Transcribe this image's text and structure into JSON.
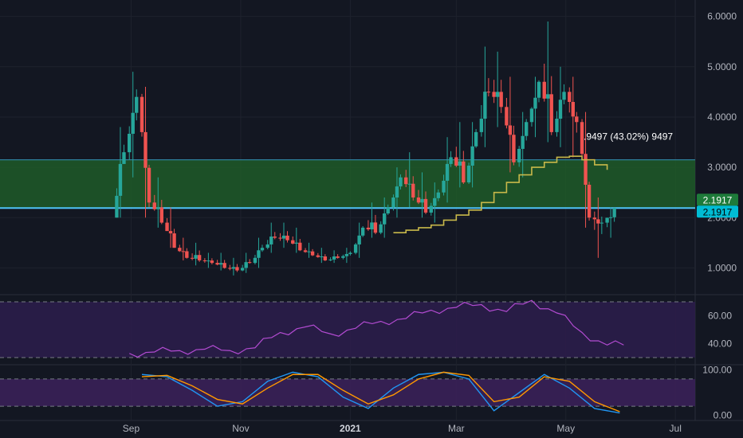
{
  "chart_data": [
    {
      "type": "candlestick",
      "x": [
        "2020-08-24",
        "2020-08-31",
        "2020-09-07",
        "2020-09-14",
        "2020-09-21",
        "2020-09-28",
        "2020-10-05",
        "2020-10-12",
        "2020-10-19",
        "2020-10-26",
        "2020-11-02",
        "2020-11-09",
        "2020-11-16",
        "2020-11-23",
        "2020-11-30",
        "2020-12-07",
        "2020-12-14",
        "2020-12-21",
        "2020-12-28",
        "2021-01-04",
        "2021-01-11",
        "2021-01-18",
        "2021-01-25",
        "2021-02-01",
        "2021-02-08",
        "2021-02-15",
        "2021-02-22",
        "2021-03-01",
        "2021-03-08",
        "2021-03-15",
        "2021-03-22",
        "2021-03-29",
        "2021-04-05",
        "2021-04-12",
        "2021-04-19",
        "2021-04-26",
        "2021-05-03",
        "2021-05-10",
        "2021-05-17",
        "2021-05-24"
      ],
      "open": [
        2.0,
        3.3,
        4.4,
        2.3,
        1.9,
        1.4,
        1.2,
        1.15,
        1.1,
        1.0,
        0.95,
        1.1,
        1.4,
        1.6,
        1.55,
        1.35,
        1.25,
        1.15,
        1.2,
        1.3,
        1.8,
        1.7,
        2.2,
        2.8,
        2.4,
        2.1,
        2.5,
        3.2,
        2.7,
        3.7,
        4.5,
        4.2,
        3.1,
        3.9,
        4.7,
        3.7,
        4.5,
        3.9,
        2.0,
        1.9
      ],
      "high": [
        3.8,
        4.9,
        4.6,
        2.8,
        2.2,
        1.6,
        1.5,
        1.3,
        1.3,
        1.2,
        1.3,
        1.6,
        1.9,
        1.9,
        1.8,
        1.5,
        1.4,
        1.35,
        1.4,
        1.9,
        2.3,
        2.4,
        3.0,
        3.3,
        2.9,
        2.7,
        3.6,
        3.9,
        3.9,
        5.4,
        5.3,
        4.8,
        4.1,
        4.8,
        5.9,
        5.0,
        4.8,
        4.1,
        2.4,
        2.2
      ],
      "low": [
        2.0,
        2.8,
        2.0,
        1.8,
        1.4,
        1.15,
        1.05,
        1.0,
        0.95,
        0.85,
        0.9,
        1.0,
        1.3,
        1.4,
        1.3,
        1.2,
        1.1,
        1.1,
        1.1,
        1.2,
        1.6,
        1.6,
        2.0,
        2.2,
        2.0,
        1.9,
        2.3,
        2.6,
        2.6,
        3.4,
        3.8,
        2.9,
        2.8,
        3.6,
        3.5,
        3.4,
        3.2,
        1.8,
        1.2,
        1.6
      ],
      "close": [
        3.3,
        4.4,
        2.3,
        1.9,
        1.4,
        1.2,
        1.15,
        1.1,
        1.0,
        0.95,
        1.1,
        1.4,
        1.6,
        1.55,
        1.35,
        1.25,
        1.15,
        1.2,
        1.3,
        1.8,
        1.7,
        2.2,
        2.8,
        2.4,
        2.1,
        2.5,
        3.2,
        2.7,
        3.7,
        4.5,
        4.2,
        3.1,
        3.9,
        4.7,
        3.7,
        4.5,
        3.9,
        2.0,
        1.9,
        2.19
      ],
      "moving_average": [
        null,
        null,
        null,
        null,
        null,
        null,
        null,
        null,
        null,
        null,
        null,
        null,
        null,
        null,
        null,
        null,
        null,
        null,
        null,
        null,
        null,
        null,
        1.7,
        1.75,
        1.8,
        1.85,
        1.95,
        2.05,
        2.15,
        2.3,
        2.5,
        2.7,
        2.85,
        3.0,
        3.1,
        3.2,
        3.22,
        3.15,
        3.05,
        2.95
      ],
      "ylim": [
        0.5,
        6.2
      ],
      "y_ticks": [
        "6.0000",
        "5.0000",
        "4.0000",
        "3.0000",
        "2.0000",
        "1.0000"
      ],
      "y_tick_values": [
        6,
        5,
        4,
        3,
        2,
        1
      ],
      "x_ticks": [
        {
          "label": "Sep",
          "date": "2020-09-01",
          "bold": false
        },
        {
          "label": "Nov",
          "date": "2020-11-01",
          "bold": false
        },
        {
          "label": "2021",
          "date": "2021-01-01",
          "bold": true
        },
        {
          "label": "Mar",
          "date": "2021-03-01",
          "bold": false
        },
        {
          "label": "May",
          "date": "2021-05-01",
          "bold": false
        },
        {
          "label": "Jul",
          "date": "2021-07-01",
          "bold": false
        }
      ],
      "zone_upper": 3.15,
      "zone_lower": 2.19,
      "price_badges": [
        "2.1917",
        "2.1917"
      ],
      "annotation": ".9497 (43.02%) 9497",
      "colors": {
        "up": "#26a69a",
        "down": "#ef5350",
        "ma": "#c8b84a",
        "zone": "#1e5a28",
        "zone_line": "#4fc3f7"
      }
    },
    {
      "type": "line",
      "name": "RSI",
      "x": [
        "2020-08-31",
        "2020-09-14",
        "2020-09-28",
        "2020-10-12",
        "2020-10-26",
        "2020-11-09",
        "2020-11-23",
        "2020-12-07",
        "2020-12-21",
        "2021-01-04",
        "2021-01-18",
        "2021-02-01",
        "2021-02-15",
        "2021-03-01",
        "2021-03-15",
        "2021-03-29",
        "2021-04-12",
        "2021-04-26",
        "2021-05-10",
        "2021-05-24"
      ],
      "values": [
        33,
        34,
        35,
        36,
        35,
        37,
        48,
        52,
        47,
        51,
        56,
        58,
        64,
        66,
        68,
        63,
        71,
        62,
        48,
        39
      ],
      "ylim": [
        26,
        74
      ],
      "y_ticks": [
        "60.00",
        "40.00"
      ],
      "y_tick_values": [
        60,
        40
      ],
      "bands": [
        70,
        30
      ],
      "color": "#b24bd1"
    },
    {
      "type": "line",
      "name": "Stochastic",
      "x": [
        "2020-09-07",
        "2020-09-21",
        "2020-10-05",
        "2020-10-19",
        "2020-11-02",
        "2020-11-16",
        "2020-11-30",
        "2020-12-14",
        "2020-12-28",
        "2021-01-11",
        "2021-01-25",
        "2021-02-08",
        "2021-02-22",
        "2021-03-08",
        "2021-03-22",
        "2021-04-05",
        "2021-04-19",
        "2021-05-03",
        "2021-05-17",
        "2021-05-31"
      ],
      "series": [
        {
          "values": [
            90,
            85,
            55,
            20,
            30,
            75,
            95,
            85,
            40,
            15,
            60,
            90,
            95,
            80,
            10,
            50,
            90,
            60,
            15,
            5
          ]
        },
        {
          "values": [
            85,
            88,
            65,
            35,
            25,
            60,
            90,
            90,
            55,
            25,
            45,
            80,
            95,
            88,
            30,
            40,
            85,
            75,
            30,
            8
          ]
        }
      ],
      "ylim": [
        -8,
        108
      ],
      "y_ticks": [
        "100.00",
        "0.00"
      ],
      "y_tick_values": [
        100,
        0
      ],
      "bands": [
        80,
        20
      ],
      "colors": [
        "#2196f3",
        "#ff9800"
      ]
    }
  ]
}
